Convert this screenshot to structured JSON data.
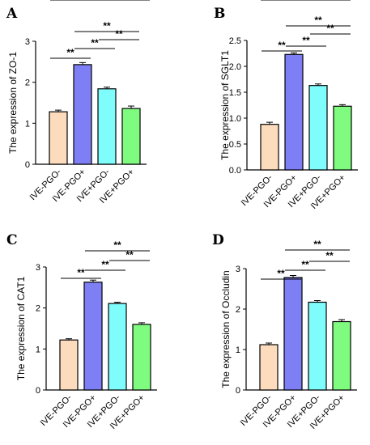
{
  "chart_data": [
    {
      "type": "bar",
      "panel": "A",
      "categories": [
        "IVE-PGO-",
        "IVE-PGO+",
        "IVE+PGO-",
        "IVE+PGO+"
      ],
      "values": [
        1.28,
        2.43,
        1.84,
        1.36
      ],
      "errors": [
        0.04,
        0.05,
        0.04,
        0.06
      ],
      "ylabel": "The expression of ZO-1",
      "ylim": [
        0,
        3
      ],
      "yticks": [
        0,
        1,
        2,
        3
      ],
      "significance": [
        {
          "from": 0,
          "to": 1,
          "label": "**"
        },
        {
          "from": 1,
          "to": 2,
          "label": "**"
        },
        {
          "from": 2,
          "to": 3,
          "label": "**"
        },
        {
          "from": 1,
          "to": 3,
          "label": "**"
        },
        {
          "from": 0,
          "to": 3,
          "label": "**"
        }
      ]
    },
    {
      "type": "bar",
      "panel": "B",
      "categories": [
        "IVE-PGO-",
        "IVE-PGO+",
        "IVE+PGO-",
        "IVE+PGO+"
      ],
      "values": [
        0.88,
        2.23,
        1.63,
        1.23
      ],
      "errors": [
        0.04,
        0.03,
        0.03,
        0.03
      ],
      "ylabel": "The expression of SGLT1",
      "ylim": [
        0,
        2.5
      ],
      "yticks": [
        0.0,
        0.5,
        1.0,
        1.5,
        2.0,
        2.5
      ],
      "significance": [
        {
          "from": 0,
          "to": 1,
          "label": "**"
        },
        {
          "from": 1,
          "to": 2,
          "label": "**"
        },
        {
          "from": 2,
          "to": 3,
          "label": "**"
        },
        {
          "from": 1,
          "to": 3,
          "label": "**"
        },
        {
          "from": 0,
          "to": 3,
          "label": "**"
        }
      ]
    },
    {
      "type": "bar",
      "panel": "C",
      "categories": [
        "IVE-PGO-",
        "IVE-PGO+",
        "IVE+PGO-",
        "IVE+PGO+"
      ],
      "values": [
        1.22,
        2.63,
        2.11,
        1.6
      ],
      "errors": [
        0.03,
        0.05,
        0.03,
        0.04
      ],
      "ylabel": "The expression of CAT1",
      "ylim": [
        0,
        3
      ],
      "yticks": [
        0,
        1,
        2,
        3
      ],
      "significance": [
        {
          "from": 0,
          "to": 1,
          "label": "**"
        },
        {
          "from": 1,
          "to": 2,
          "label": "**"
        },
        {
          "from": 2,
          "to": 3,
          "label": "**"
        },
        {
          "from": 1,
          "to": 3,
          "label": "**"
        },
        {
          "from": 0,
          "to": 3,
          "label": "**"
        }
      ]
    },
    {
      "type": "bar",
      "panel": "D",
      "categories": [
        "IVE-PGO-",
        "IVE-PGO+",
        "IVE+PGO-",
        "IVE+PGO+"
      ],
      "values": [
        1.12,
        2.78,
        2.17,
        1.69
      ],
      "errors": [
        0.04,
        0.05,
        0.04,
        0.05
      ],
      "ylabel": "The expression of Occludin",
      "ylim": [
        0,
        3
      ],
      "yticks": [
        0,
        1,
        2,
        3
      ],
      "significance": [
        {
          "from": 0,
          "to": 1,
          "label": "**"
        },
        {
          "from": 1,
          "to": 2,
          "label": "**"
        },
        {
          "from": 2,
          "to": 3,
          "label": "**"
        },
        {
          "from": 1,
          "to": 3,
          "label": "**"
        },
        {
          "from": 0,
          "to": 3,
          "label": "**"
        }
      ]
    }
  ],
  "colors": {
    "bars": [
      "#fcdcbc",
      "#7f7ff5",
      "#7ffcfc",
      "#7ffc7f"
    ],
    "stroke": "#000000"
  }
}
